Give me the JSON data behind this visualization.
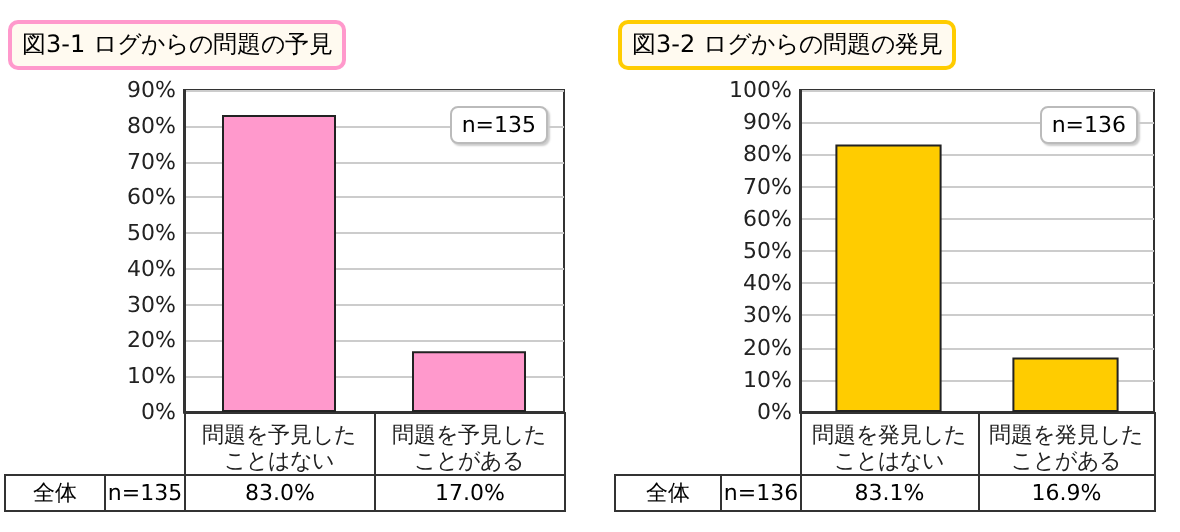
{
  "chart_data": [
    {
      "type": "bar",
      "title": "図3-1 ログからの問題の予見",
      "categories": [
        "問題を予見したことはない",
        "問題を予見したことがある"
      ],
      "values": [
        83.0,
        17.0
      ],
      "value_labels": [
        "83.0%",
        "17.0%"
      ],
      "color": "#ff99cc",
      "ylim": [
        0,
        90
      ],
      "yticks": [
        {
          "value": 0,
          "label": "0%"
        },
        {
          "value": 10,
          "label": "10%"
        },
        {
          "value": 20,
          "label": "20%"
        },
        {
          "value": 30,
          "label": "30%"
        },
        {
          "value": 40,
          "label": "40%"
        },
        {
          "value": 50,
          "label": "50%"
        },
        {
          "value": 60,
          "label": "60%"
        },
        {
          "value": 70,
          "label": "70%"
        },
        {
          "value": 80,
          "label": "80%"
        },
        {
          "value": 90,
          "label": "90%"
        }
      ],
      "grid": "y",
      "annotations": [
        "n=135",
        "全体",
        "n=135"
      ]
    },
    {
      "type": "bar",
      "title": "図3-2 ログからの問題の発見",
      "categories": [
        "問題を発見したことはない",
        "問題を発見したことがある"
      ],
      "values": [
        83.1,
        16.9
      ],
      "value_labels": [
        "83.1%",
        "16.9%"
      ],
      "color": "#ffcc00",
      "ylim": [
        0,
        100
      ],
      "yticks": [
        {
          "value": 0,
          "label": "0%"
        },
        {
          "value": 10,
          "label": "10%"
        },
        {
          "value": 20,
          "label": "20%"
        },
        {
          "value": 30,
          "label": "30%"
        },
        {
          "value": 40,
          "label": "40%"
        },
        {
          "value": 50,
          "label": "50%"
        },
        {
          "value": 60,
          "label": "60%"
        },
        {
          "value": 70,
          "label": "70%"
        },
        {
          "value": 80,
          "label": "80%"
        },
        {
          "value": 90,
          "label": "90%"
        },
        {
          "value": 100,
          "label": "100%"
        }
      ],
      "grid": "y",
      "annotations": [
        "n=136",
        "全体",
        "n=136"
      ]
    }
  ]
}
